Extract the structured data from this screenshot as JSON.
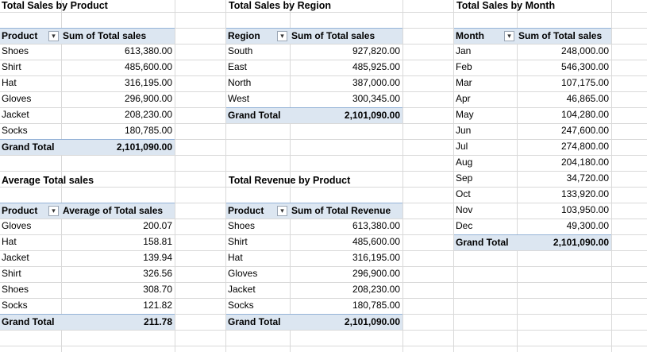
{
  "colors": {
    "header_fill": "#dce6f1",
    "header_border": "#95b3d7",
    "grid": "#d9d9d9"
  },
  "icons": {
    "sorted_filter": "sort-filter-dropdown-icon",
    "filter": "filter-dropdown-icon"
  },
  "product_sales": {
    "title": "Total Sales by Product",
    "col_key": "Product",
    "col_val": "Sum of Total sales",
    "rows": [
      {
        "k": "Shoes",
        "v": "613,380.00"
      },
      {
        "k": "Shirt",
        "v": "485,600.00"
      },
      {
        "k": "Hat",
        "v": "316,195.00"
      },
      {
        "k": "Gloves",
        "v": "296,900.00"
      },
      {
        "k": "Jacket",
        "v": "208,230.00"
      },
      {
        "k": "Socks",
        "v": "180,785.00"
      }
    ],
    "total_label": "Grand Total",
    "total_value": "2,101,090.00"
  },
  "region_sales": {
    "title": "Total Sales by Region",
    "col_key": "Region",
    "col_val": "Sum of Total sales",
    "rows": [
      {
        "k": "South",
        "v": "927,820.00"
      },
      {
        "k": "East",
        "v": "485,925.00"
      },
      {
        "k": "North",
        "v": "387,000.00"
      },
      {
        "k": "West",
        "v": "300,345.00"
      }
    ],
    "total_label": "Grand Total",
    "total_value": "2,101,090.00"
  },
  "month_sales": {
    "title": "Total Sales by Month",
    "col_key": "Month",
    "col_val": "Sum of Total sales",
    "rows": [
      {
        "k": "Jan",
        "v": "248,000.00"
      },
      {
        "k": "Feb",
        "v": "546,300.00"
      },
      {
        "k": "Mar",
        "v": "107,175.00"
      },
      {
        "k": "Apr",
        "v": "46,865.00"
      },
      {
        "k": "May",
        "v": "104,280.00"
      },
      {
        "k": "Jun",
        "v": "247,600.00"
      },
      {
        "k": "Jul",
        "v": "274,800.00"
      },
      {
        "k": "Aug",
        "v": "204,180.00"
      },
      {
        "k": "Sep",
        "v": "34,720.00"
      },
      {
        "k": "Oct",
        "v": "133,920.00"
      },
      {
        "k": "Nov",
        "v": "103,950.00"
      },
      {
        "k": "Dec",
        "v": "49,300.00"
      }
    ],
    "total_label": "Grand Total",
    "total_value": "2,101,090.00"
  },
  "avg_sales": {
    "title": "Average Total sales",
    "col_key": "Product",
    "col_val": "Average of Total sales",
    "rows": [
      {
        "k": "Gloves",
        "v": "200.07"
      },
      {
        "k": "Hat",
        "v": "158.81"
      },
      {
        "k": "Jacket",
        "v": "139.94"
      },
      {
        "k": "Shirt",
        "v": "326.56"
      },
      {
        "k": "Shoes",
        "v": "308.70"
      },
      {
        "k": "Socks",
        "v": "121.82"
      }
    ],
    "total_label": "Grand Total",
    "total_value": "211.78"
  },
  "product_revenue": {
    "title": "Total Revenue by Product",
    "col_key": "Product",
    "col_val": "Sum of Total Revenue",
    "rows": [
      {
        "k": "Shoes",
        "v": "613,380.00"
      },
      {
        "k": "Shirt",
        "v": "485,600.00"
      },
      {
        "k": "Hat",
        "v": "316,195.00"
      },
      {
        "k": "Gloves",
        "v": "296,900.00"
      },
      {
        "k": "Jacket",
        "v": "208,230.00"
      },
      {
        "k": "Socks",
        "v": "180,785.00"
      }
    ],
    "total_label": "Grand Total",
    "total_value": "2,101,090.00"
  }
}
